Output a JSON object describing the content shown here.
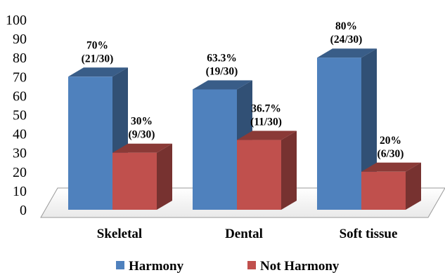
{
  "chart_data": {
    "type": "bar",
    "style": "3d-clustered-column",
    "categories": [
      "Skeletal",
      "Dental",
      "Soft tissue"
    ],
    "series": [
      {
        "name": "Harmony",
        "color": "#4f81bd",
        "values": [
          70,
          63.3,
          80
        ],
        "labels": [
          [
            "70%",
            "(21/30)"
          ],
          [
            "63.3%",
            "(19/30)"
          ],
          [
            "80%",
            "(24/30)"
          ]
        ]
      },
      {
        "name": "Not Harmony",
        "color": "#c0504d",
        "values": [
          30,
          36.7,
          20
        ],
        "labels": [
          [
            "30%",
            "(9/30)"
          ],
          [
            "36.7%",
            "(11/30)"
          ],
          [
            "20%",
            "(6/30)"
          ]
        ]
      }
    ],
    "ylim": [
      0,
      100
    ],
    "yticks": [
      0,
      10,
      20,
      30,
      40,
      50,
      60,
      70,
      80,
      90,
      100
    ],
    "grid": false,
    "legend": "bottom"
  }
}
